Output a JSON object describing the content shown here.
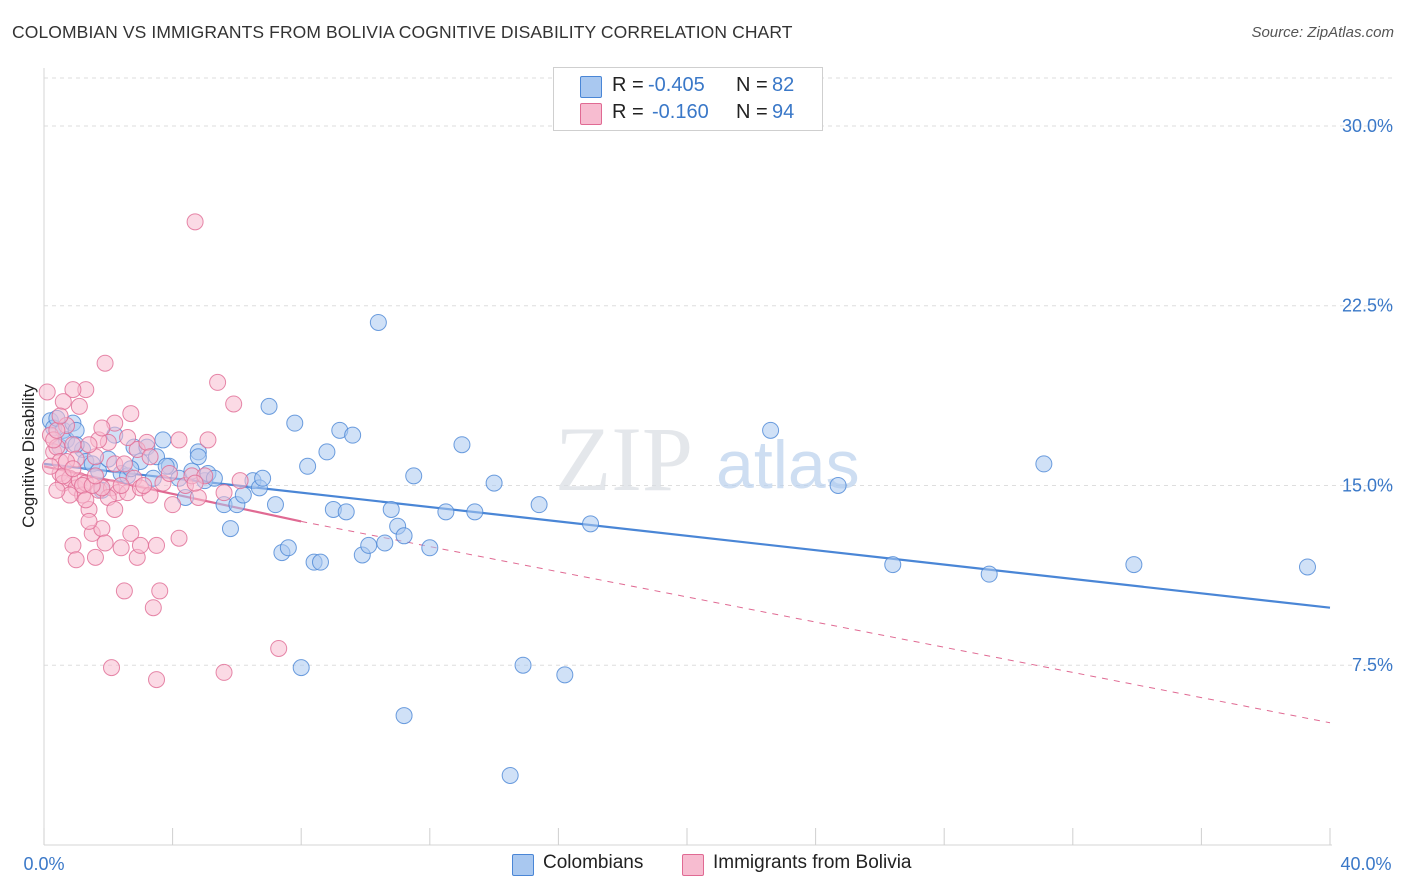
{
  "title": "COLOMBIAN VS IMMIGRANTS FROM BOLIVIA COGNITIVE DISABILITY CORRELATION CHART",
  "source": "Source: ZipAtlas.com",
  "watermark": {
    "zip": "ZIP",
    "atlas": "atlas"
  },
  "legend": {
    "rows": [
      {
        "r_label": "R =",
        "r_value": "-0.405",
        "n_label": "N =",
        "n_value": "82",
        "color": "#a9c8f0",
        "border": "#4a86d6"
      },
      {
        "r_label": "R =",
        "r_value": "-0.160",
        "n_label": "N =",
        "n_value": "94",
        "color": "#f7bcd0",
        "border": "#e06a93"
      }
    ]
  },
  "bottom_legend": [
    {
      "label": "Colombians",
      "color": "#a9c8f0",
      "border": "#4a86d6"
    },
    {
      "label": "Immigrants from Bolivia",
      "color": "#f7bcd0",
      "border": "#e06a93"
    }
  ],
  "chart_data": {
    "type": "scatter",
    "xlabel": "",
    "ylabel": "Cognitive Disability",
    "xlim": [
      0,
      40
    ],
    "ylim": [
      0,
      32
    ],
    "x_tick_labels": [
      "0.0%",
      "40.0%"
    ],
    "y_ticks": [
      7.5,
      15.0,
      22.5,
      30.0
    ],
    "y_tick_labels": [
      "7.5%",
      "15.0%",
      "22.5%",
      "30.0%"
    ],
    "grid": true,
    "legend_placement": "top-center",
    "series": [
      {
        "name": "Colombians",
        "color": "#4a86d6",
        "fill": "#a9c8f0",
        "trend": {
          "x": [
            0,
            40
          ],
          "y": [
            15.9,
            9.9
          ],
          "style": "solid"
        },
        "points": [
          [
            0.2,
            17.7
          ],
          [
            0.3,
            17.4
          ],
          [
            0.4,
            17.8
          ],
          [
            0.5,
            16.6
          ],
          [
            0.6,
            17.3
          ],
          [
            0.7,
            16.9
          ],
          [
            0.9,
            17.6
          ],
          [
            1.0,
            17.3
          ],
          [
            1.2,
            16.5
          ],
          [
            1.3,
            16.0
          ],
          [
            1.5,
            15.9
          ],
          [
            1.7,
            15.6
          ],
          [
            1.8,
            14.8
          ],
          [
            2.0,
            16.1
          ],
          [
            2.2,
            17.1
          ],
          [
            2.4,
            15.5
          ],
          [
            2.6,
            15.4
          ],
          [
            2.8,
            16.6
          ],
          [
            3.0,
            16.0
          ],
          [
            3.2,
            16.6
          ],
          [
            3.4,
            15.3
          ],
          [
            3.5,
            16.2
          ],
          [
            3.7,
            16.9
          ],
          [
            3.9,
            15.8
          ],
          [
            4.2,
            15.3
          ],
          [
            4.4,
            14.5
          ],
          [
            4.6,
            15.6
          ],
          [
            4.8,
            16.4
          ],
          [
            5.0,
            15.2
          ],
          [
            5.1,
            15.5
          ],
          [
            5.3,
            15.3
          ],
          [
            5.6,
            14.2
          ],
          [
            5.8,
            13.2
          ],
          [
            6.0,
            14.2
          ],
          [
            6.2,
            14.6
          ],
          [
            6.5,
            15.2
          ],
          [
            6.7,
            14.9
          ],
          [
            6.8,
            15.3
          ],
          [
            7.0,
            18.3
          ],
          [
            7.2,
            14.2
          ],
          [
            7.4,
            12.2
          ],
          [
            7.6,
            12.4
          ],
          [
            7.8,
            17.6
          ],
          [
            8.0,
            7.4
          ],
          [
            8.2,
            15.8
          ],
          [
            8.4,
            11.8
          ],
          [
            8.6,
            11.8
          ],
          [
            8.8,
            16.4
          ],
          [
            9.0,
            14.0
          ],
          [
            9.2,
            17.3
          ],
          [
            9.4,
            13.9
          ],
          [
            9.6,
            17.1
          ],
          [
            9.9,
            12.1
          ],
          [
            10.1,
            12.5
          ],
          [
            10.4,
            21.8
          ],
          [
            10.6,
            12.6
          ],
          [
            10.8,
            14.0
          ],
          [
            11.0,
            13.3
          ],
          [
            11.2,
            12.9
          ],
          [
            11.5,
            15.4
          ],
          [
            12.0,
            12.4
          ],
          [
            12.5,
            13.9
          ],
          [
            13.0,
            16.7
          ],
          [
            13.4,
            13.9
          ],
          [
            14.0,
            15.1
          ],
          [
            14.5,
            2.9
          ],
          [
            14.9,
            7.5
          ],
          [
            15.4,
            14.2
          ],
          [
            16.2,
            7.1
          ],
          [
            17.0,
            13.4
          ],
          [
            11.2,
            5.4
          ],
          [
            22.6,
            17.3
          ],
          [
            24.7,
            15.0
          ],
          [
            26.4,
            11.7
          ],
          [
            29.4,
            11.3
          ],
          [
            31.1,
            15.9
          ],
          [
            33.9,
            11.7
          ],
          [
            39.3,
            11.6
          ],
          [
            1.0,
            16.7
          ],
          [
            3.8,
            15.8
          ],
          [
            4.8,
            16.2
          ],
          [
            2.7,
            15.7
          ]
        ]
      },
      {
        "name": "Immigrants from Bolivia",
        "color": "#e06a93",
        "fill": "#f7bcd0",
        "trend": {
          "x": [
            0,
            8
          ],
          "y": [
            15.8,
            13.5
          ],
          "style": "solid",
          "dashed_extension": {
            "x": [
              8,
              40
            ],
            "y": [
              13.5,
              5.1
            ]
          }
        },
        "points": [
          [
            0.1,
            18.9
          ],
          [
            0.2,
            17.1
          ],
          [
            0.3,
            16.4
          ],
          [
            0.4,
            16.6
          ],
          [
            0.5,
            15.5
          ],
          [
            0.6,
            15.1
          ],
          [
            0.7,
            17.5
          ],
          [
            0.8,
            15.3
          ],
          [
            0.9,
            16.7
          ],
          [
            1.0,
            14.9
          ],
          [
            1.1,
            15.2
          ],
          [
            1.2,
            14.6
          ],
          [
            1.3,
            15.1
          ],
          [
            1.4,
            14.0
          ],
          [
            1.5,
            13.0
          ],
          [
            1.6,
            12.0
          ],
          [
            1.7,
            14.8
          ],
          [
            1.8,
            13.2
          ],
          [
            1.9,
            12.6
          ],
          [
            2.0,
            16.8
          ],
          [
            2.1,
            14.9
          ],
          [
            2.2,
            15.9
          ],
          [
            2.3,
            14.7
          ],
          [
            2.4,
            12.4
          ],
          [
            2.5,
            10.6
          ],
          [
            2.6,
            14.7
          ],
          [
            2.7,
            18.0
          ],
          [
            2.8,
            15.3
          ],
          [
            2.9,
            16.5
          ],
          [
            3.0,
            14.9
          ],
          [
            3.2,
            16.8
          ],
          [
            3.3,
            14.6
          ],
          [
            3.5,
            12.5
          ],
          [
            3.7,
            15.1
          ],
          [
            3.9,
            15.5
          ],
          [
            4.2,
            16.9
          ],
          [
            4.4,
            15.0
          ],
          [
            4.6,
            15.4
          ],
          [
            4.8,
            14.5
          ],
          [
            5.0,
            15.4
          ],
          [
            5.1,
            16.9
          ],
          [
            5.4,
            19.3
          ],
          [
            5.6,
            14.7
          ],
          [
            5.9,
            18.4
          ],
          [
            6.1,
            15.2
          ],
          [
            7.3,
            8.2
          ],
          [
            4.7,
            26.0
          ],
          [
            1.9,
            20.1
          ],
          [
            1.3,
            19.0
          ],
          [
            0.9,
            19.0
          ],
          [
            1.1,
            18.3
          ],
          [
            0.6,
            18.5
          ],
          [
            0.3,
            16.9
          ],
          [
            1.7,
            16.9
          ],
          [
            2.2,
            17.6
          ],
          [
            2.5,
            15.9
          ],
          [
            1.0,
            16.1
          ],
          [
            0.8,
            14.6
          ],
          [
            0.4,
            14.8
          ],
          [
            0.5,
            16.0
          ],
          [
            1.4,
            13.5
          ],
          [
            1.6,
            16.2
          ],
          [
            2.0,
            14.5
          ],
          [
            2.9,
            12.0
          ],
          [
            3.1,
            15.0
          ],
          [
            3.4,
            9.9
          ],
          [
            3.6,
            10.6
          ],
          [
            4.2,
            12.8
          ],
          [
            5.6,
            7.2
          ],
          [
            3.5,
            6.9
          ],
          [
            2.1,
            7.4
          ],
          [
            1.8,
            14.9
          ],
          [
            0.9,
            12.5
          ],
          [
            1.2,
            15.0
          ],
          [
            0.6,
            15.4
          ],
          [
            2.7,
            13.0
          ],
          [
            3.0,
            12.5
          ],
          [
            1.5,
            15.0
          ],
          [
            0.2,
            15.8
          ],
          [
            0.7,
            16.0
          ],
          [
            1.3,
            14.4
          ],
          [
            2.4,
            15.0
          ],
          [
            4.0,
            14.2
          ],
          [
            1.0,
            11.9
          ],
          [
            0.4,
            17.3
          ],
          [
            2.6,
            17.0
          ],
          [
            1.8,
            17.4
          ],
          [
            3.3,
            16.2
          ],
          [
            0.9,
            15.7
          ],
          [
            1.4,
            16.7
          ],
          [
            2.2,
            14.0
          ],
          [
            4.7,
            15.1
          ],
          [
            1.6,
            15.4
          ],
          [
            0.5,
            17.9
          ]
        ]
      }
    ]
  }
}
